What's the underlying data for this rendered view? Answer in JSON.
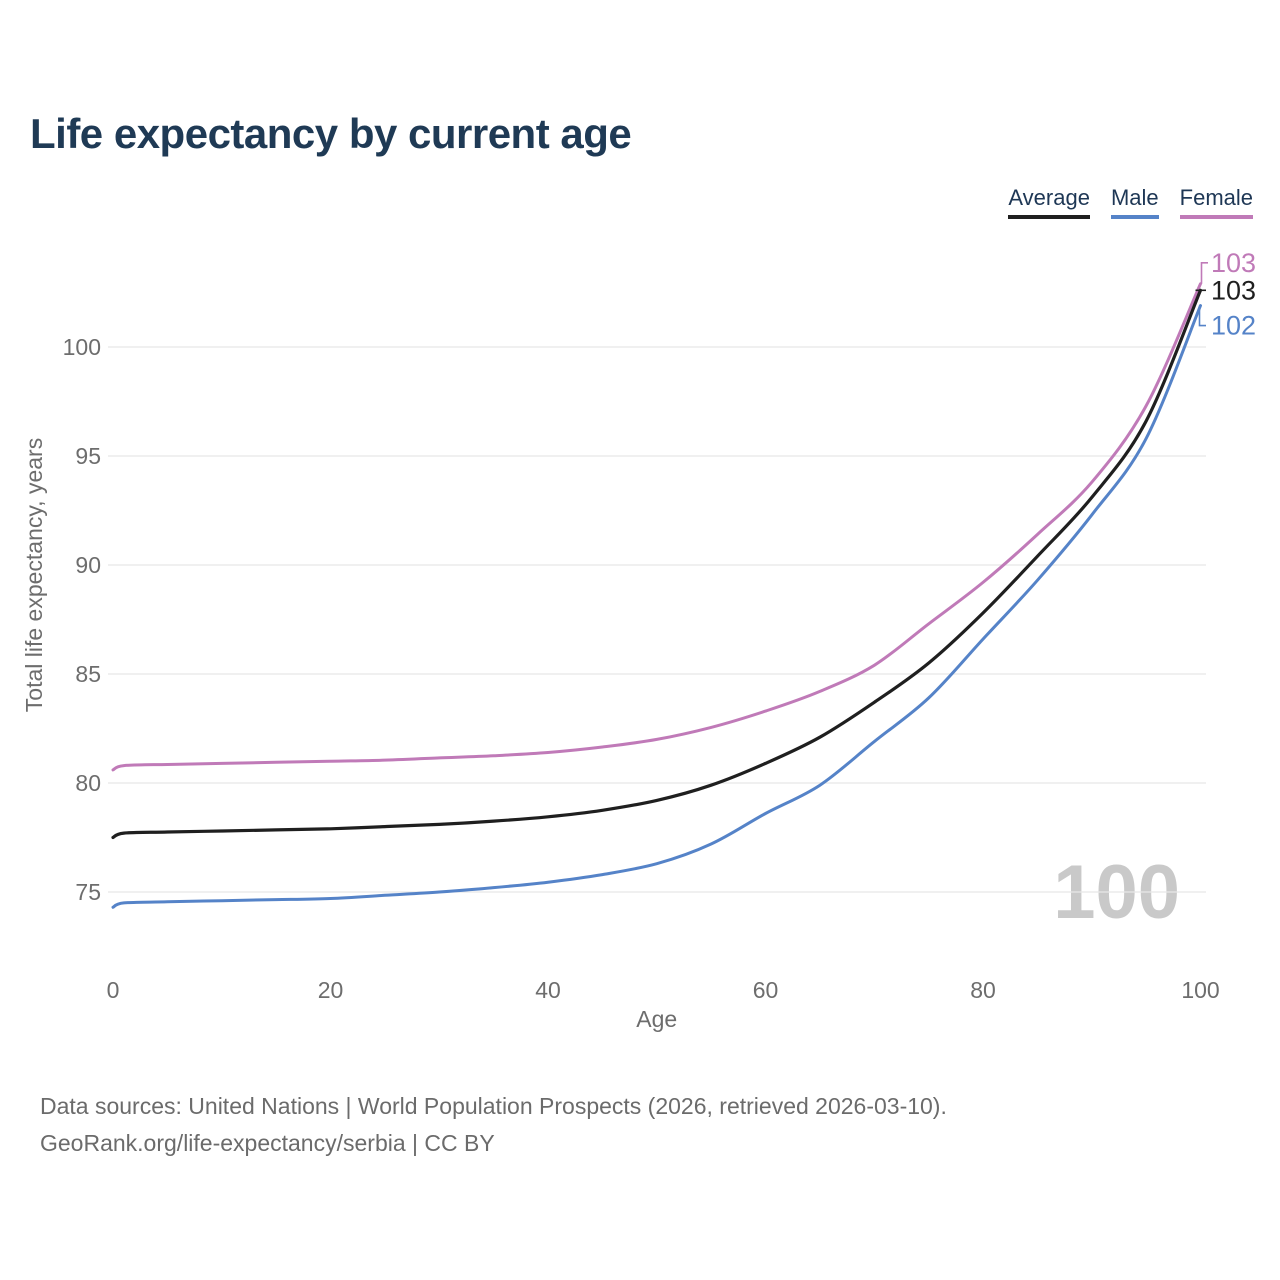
{
  "title": "Life expectancy by current age",
  "legend": {
    "items": [
      {
        "label": "Average",
        "color": "#1f1f1f"
      },
      {
        "label": "Male",
        "color": "#5583c8"
      },
      {
        "label": "Female",
        "color": "#c07ab8"
      }
    ]
  },
  "chart_data": {
    "type": "line",
    "title": "Life expectancy by current age",
    "xlabel": "Age",
    "ylabel": "Total life expectancy, years",
    "x_ticks": [
      0,
      20,
      40,
      60,
      80,
      100
    ],
    "y_ticks": [
      75,
      80,
      85,
      90,
      95,
      100
    ],
    "xlim": [
      0,
      100
    ],
    "ylim": [
      75,
      103.5
    ],
    "grid": "horizontal",
    "legend_position": "top-right",
    "x": [
      0,
      1,
      5,
      10,
      15,
      20,
      25,
      30,
      35,
      40,
      45,
      50,
      55,
      60,
      65,
      70,
      75,
      80,
      85,
      90,
      95,
      100
    ],
    "series": [
      {
        "name": "Female",
        "color": "#c07ab8",
        "end_label": "103",
        "values": [
          80.6,
          80.8,
          80.85,
          80.9,
          80.95,
          81.0,
          81.05,
          81.15,
          81.25,
          81.4,
          81.65,
          82.0,
          82.55,
          83.3,
          84.2,
          85.4,
          87.3,
          89.2,
          91.4,
          93.8,
          97.3,
          102.9
        ]
      },
      {
        "name": "Male",
        "color": "#5583c8",
        "end_label": "102",
        "values": [
          74.3,
          74.5,
          74.55,
          74.6,
          74.65,
          74.7,
          74.85,
          75.0,
          75.2,
          75.45,
          75.8,
          76.3,
          77.2,
          78.6,
          79.9,
          81.9,
          83.9,
          86.6,
          89.3,
          92.3,
          95.8,
          101.9
        ]
      },
      {
        "name": "Average",
        "color": "#1f1f1f",
        "end_label": "103",
        "values": [
          77.5,
          77.7,
          77.75,
          77.8,
          77.85,
          77.9,
          78.0,
          78.1,
          78.25,
          78.45,
          78.75,
          79.2,
          79.9,
          80.9,
          82.1,
          83.7,
          85.5,
          87.8,
          90.4,
          93.1,
          96.6,
          102.6
        ]
      }
    ]
  },
  "watermark": "100",
  "footer": {
    "line1": "Data sources: United Nations | World Population Prospects (2026, retrieved 2026-03-10).",
    "line2": "GeoRank.org/life-expectancy/serbia | CC BY"
  },
  "colors": {
    "title_text": "#1f3a55",
    "axis_text": "#6d6d6d",
    "gridline": "#e8e8e8",
    "watermark": "#c9c9c9",
    "footer_text": "#6b6b6b"
  }
}
